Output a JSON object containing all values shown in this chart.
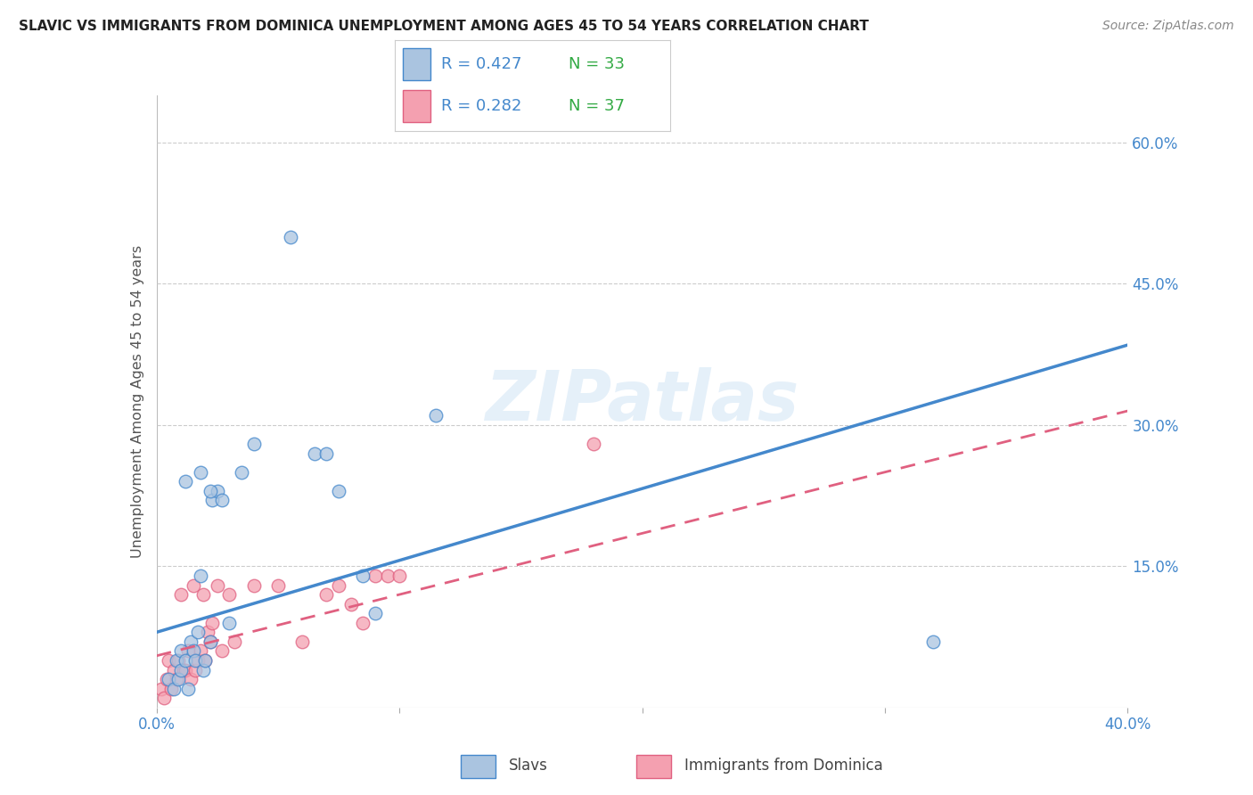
{
  "title": "SLAVIC VS IMMIGRANTS FROM DOMINICA UNEMPLOYMENT AMONG AGES 45 TO 54 YEARS CORRELATION CHART",
  "source": "Source: ZipAtlas.com",
  "ylabel": "Unemployment Among Ages 45 to 54 years",
  "xlim": [
    0.0,
    0.4
  ],
  "ylim": [
    0.0,
    0.65
  ],
  "ytick_labels_right": [
    "60.0%",
    "45.0%",
    "30.0%",
    "15.0%"
  ],
  "ytick_positions_right": [
    0.6,
    0.45,
    0.3,
    0.15
  ],
  "grid_color": "#cccccc",
  "background_color": "#ffffff",
  "slavs_color": "#aac4e0",
  "dominica_color": "#f4a0b0",
  "slavs_line_color": "#4488cc",
  "dominica_line_color": "#e06080",
  "watermark": "ZIPatlas",
  "slavs_line_x0": 0.0,
  "slavs_line_y0": 0.08,
  "slavs_line_x1": 0.4,
  "slavs_line_y1": 0.385,
  "dominica_line_x0": 0.0,
  "dominica_line_y0": 0.055,
  "dominica_line_x1": 0.4,
  "dominica_line_y1": 0.315,
  "slavs_x": [
    0.005,
    0.007,
    0.008,
    0.009,
    0.01,
    0.01,
    0.012,
    0.013,
    0.014,
    0.015,
    0.016,
    0.017,
    0.018,
    0.019,
    0.02,
    0.022,
    0.023,
    0.025,
    0.027,
    0.03,
    0.035,
    0.04,
    0.055,
    0.065,
    0.07,
    0.075,
    0.085,
    0.09,
    0.115,
    0.32,
    0.012,
    0.018,
    0.022
  ],
  "slavs_y": [
    0.03,
    0.02,
    0.05,
    0.03,
    0.04,
    0.06,
    0.05,
    0.02,
    0.07,
    0.06,
    0.05,
    0.08,
    0.14,
    0.04,
    0.05,
    0.07,
    0.22,
    0.23,
    0.22,
    0.09,
    0.25,
    0.28,
    0.5,
    0.27,
    0.27,
    0.23,
    0.14,
    0.1,
    0.31,
    0.07,
    0.24,
    0.25,
    0.23
  ],
  "dominica_x": [
    0.002,
    0.003,
    0.004,
    0.005,
    0.006,
    0.007,
    0.008,
    0.009,
    0.01,
    0.011,
    0.012,
    0.013,
    0.014,
    0.015,
    0.016,
    0.017,
    0.018,
    0.019,
    0.02,
    0.021,
    0.022,
    0.023,
    0.025,
    0.027,
    0.03,
    0.032,
    0.04,
    0.05,
    0.06,
    0.07,
    0.075,
    0.08,
    0.085,
    0.09,
    0.095,
    0.1,
    0.18
  ],
  "dominica_y": [
    0.02,
    0.01,
    0.03,
    0.05,
    0.02,
    0.04,
    0.03,
    0.05,
    0.12,
    0.04,
    0.04,
    0.06,
    0.03,
    0.13,
    0.04,
    0.05,
    0.06,
    0.12,
    0.05,
    0.08,
    0.07,
    0.09,
    0.13,
    0.06,
    0.12,
    0.07,
    0.13,
    0.13,
    0.07,
    0.12,
    0.13,
    0.11,
    0.09,
    0.14,
    0.14,
    0.14,
    0.28
  ]
}
